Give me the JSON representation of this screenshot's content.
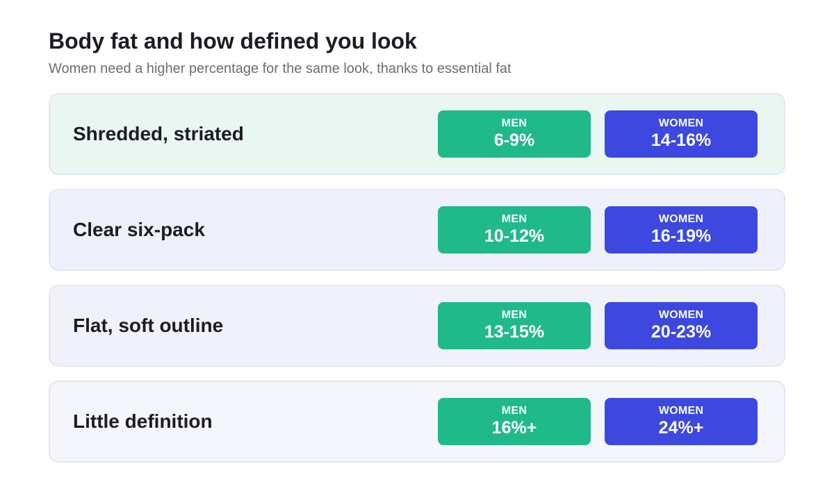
{
  "header": {
    "title": "Body fat and how defined you look",
    "subtitle": "Women need a higher percentage for the same look, thanks to essential fat"
  },
  "colors": {
    "men": "#20b98a",
    "women": "#3c48e0"
  },
  "rows": [
    {
      "label": "Shredded, striated",
      "men_label": "MEN",
      "men": "6-9%",
      "women_label": "WOMEN",
      "women": "14-16%",
      "bg": "#eaf6f1"
    },
    {
      "label": "Clear six-pack",
      "men_label": "MEN",
      "men": "10-12%",
      "women_label": "WOMEN",
      "women": "16-19%",
      "bg": "#eef0fc"
    },
    {
      "label": "Flat, soft outline",
      "men_label": "MEN",
      "men": "13-15%",
      "women_label": "WOMEN",
      "women": "20-23%",
      "bg": "#f1f1fb"
    },
    {
      "label": "Little definition",
      "men_label": "MEN",
      "men": "16%+",
      "women_label": "WOMEN",
      "women": "24%+",
      "bg": "#f5f6fc"
    }
  ]
}
